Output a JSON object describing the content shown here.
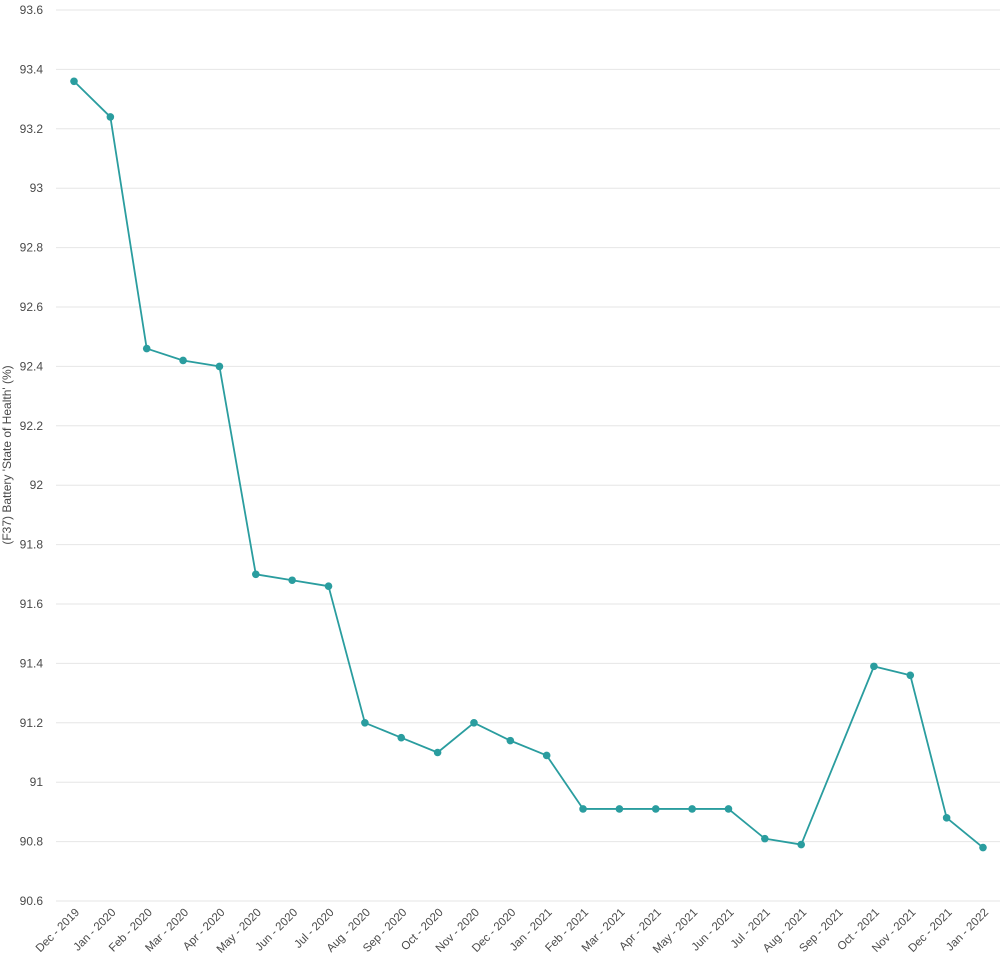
{
  "chart_data": {
    "type": "line",
    "title": "",
    "xlabel": "",
    "ylabel": "(F37) Battery 'State of Health' (%)",
    "ylim": [
      90.6,
      93.6
    ],
    "yticks": [
      90.6,
      90.8,
      91,
      91.2,
      91.4,
      91.6,
      91.8,
      92,
      92.2,
      92.4,
      92.6,
      92.8,
      93,
      93.2,
      93.4,
      93.6
    ],
    "ytick_labels": [
      "90.6",
      "90.8",
      "91",
      "91.2",
      "91.4",
      "91.6",
      "91.8",
      "92",
      "92.2",
      "92.4",
      "92.6",
      "92.8",
      "93",
      "93.2",
      "93.4",
      "93.6"
    ],
    "grid": true,
    "color": "#2a9d9f",
    "categories": [
      "Dec - 2019",
      "Jan - 2020",
      "Feb - 2020",
      "Mar - 2020",
      "Apr - 2020",
      "May - 2020",
      "Jun - 2020",
      "Jul - 2020",
      "Aug - 2020",
      "Sep - 2020",
      "Oct - 2020",
      "Nov - 2020",
      "Dec - 2020",
      "Jan - 2021",
      "Feb - 2021",
      "Mar - 2021",
      "Apr - 2021",
      "May - 2021",
      "Jun - 2021",
      "Jul - 2021",
      "Aug - 2021",
      "Sep - 2021",
      "Oct - 2021",
      "Nov - 2021",
      "Dec - 2021",
      "Jan - 2022"
    ],
    "series": [
      {
        "values": [
          93.36,
          93.24,
          92.46,
          92.42,
          92.4,
          91.7,
          91.68,
          91.66,
          91.2,
          91.15,
          91.1,
          91.2,
          91.14,
          91.09,
          90.91,
          90.91,
          90.91,
          90.91,
          90.91,
          90.81,
          90.79,
          null,
          91.39,
          91.36,
          90.88,
          90.78
        ]
      }
    ]
  }
}
